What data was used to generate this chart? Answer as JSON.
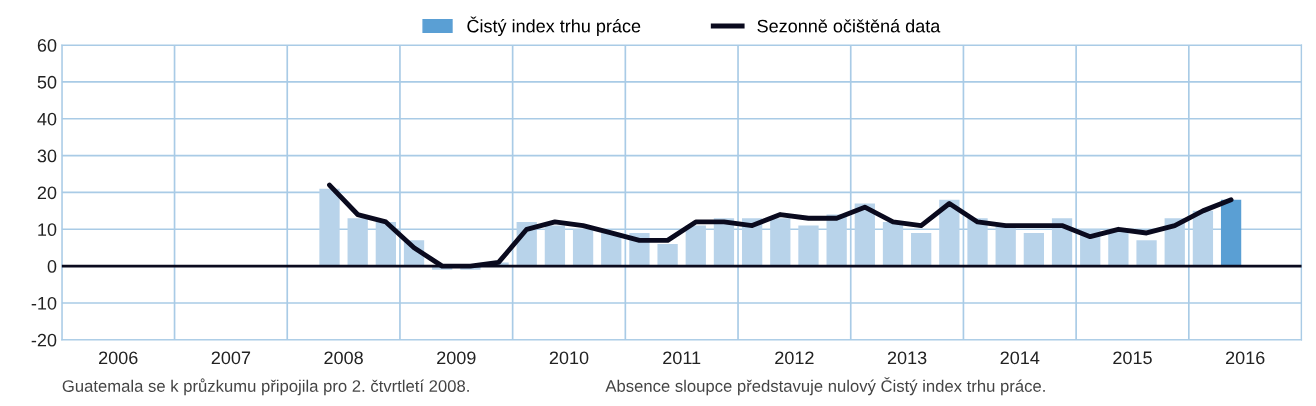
{
  "chart_data": {
    "type": "bar",
    "x": [
      2008.375,
      2008.625,
      2008.875,
      2009.125,
      2009.375,
      2009.625,
      2009.875,
      2010.125,
      2010.375,
      2010.625,
      2010.875,
      2011.125,
      2011.375,
      2011.625,
      2011.875,
      2012.125,
      2012.375,
      2012.625,
      2012.875,
      2013.125,
      2013.375,
      2013.625,
      2013.875,
      2014.125,
      2014.375,
      2014.625,
      2014.875,
      2015.125,
      2015.375,
      2015.625,
      2015.875,
      2016.125,
      2016.375
    ],
    "series": [
      {
        "name": "Čistý index trhu práce",
        "color": "#5a9fd4",
        "colors": [
          "#b8d3ea",
          "#b8d3ea",
          "#b8d3ea",
          "#b8d3ea",
          "#b8d3ea",
          "#b8d3ea",
          "#b8d3ea",
          "#b8d3ea",
          "#b8d3ea",
          "#b8d3ea",
          "#b8d3ea",
          "#b8d3ea",
          "#b8d3ea",
          "#b8d3ea",
          "#b8d3ea",
          "#b8d3ea",
          "#b8d3ea",
          "#b8d3ea",
          "#b8d3ea",
          "#b8d3ea",
          "#b8d3ea",
          "#b8d3ea",
          "#b8d3ea",
          "#b8d3ea",
          "#b8d3ea",
          "#b8d3ea",
          "#b8d3ea",
          "#b8d3ea",
          "#b8d3ea",
          "#b8d3ea",
          "#b8d3ea",
          "#b8d3ea",
          "#5a9fd4"
        ],
        "values": [
          21,
          13,
          12,
          7,
          -1,
          -1,
          1,
          12,
          11,
          10,
          9,
          9,
          6,
          11,
          13,
          13,
          13,
          11,
          14,
          17,
          12,
          9,
          18,
          13,
          11,
          9,
          13,
          10,
          10,
          7,
          13,
          15,
          18
        ]
      },
      {
        "name": "Sezonně očištěná data",
        "type": "line",
        "color": "#0a0a1e",
        "values": [
          22,
          14,
          12,
          5,
          0,
          0,
          1,
          10,
          12,
          11,
          9,
          7,
          7,
          12,
          12,
          11,
          14,
          13,
          13,
          16,
          12,
          11,
          17,
          12,
          11,
          11,
          11,
          8,
          10,
          9,
          11,
          15,
          18
        ]
      }
    ],
    "xlim": [
      2006,
      2017
    ],
    "xticks": [
      {
        "value": 2006,
        "label": null
      },
      {
        "value": 2007,
        "label": null
      },
      {
        "value": 2008,
        "label": null
      },
      {
        "value": 2009,
        "label": null
      },
      {
        "value": 2010,
        "label": null
      },
      {
        "value": 2011,
        "label": null
      },
      {
        "value": 2012,
        "label": null
      },
      {
        "value": 2013,
        "label": null
      },
      {
        "value": 2014,
        "label": null
      },
      {
        "value": 2015,
        "label": null
      },
      {
        "value": 2016,
        "label": null
      },
      {
        "value": 2017,
        "label": null
      },
      {
        "value": 2006.5,
        "label": "2006"
      },
      {
        "value": 2007.5,
        "label": "2007"
      },
      {
        "value": 2008.5,
        "label": "2008"
      },
      {
        "value": 2009.5,
        "label": "2009"
      },
      {
        "value": 2010.5,
        "label": "2010"
      },
      {
        "value": 2011.5,
        "label": "2011"
      },
      {
        "value": 2012.5,
        "label": "2012"
      },
      {
        "value": 2013.5,
        "label": "2013"
      },
      {
        "value": 2014.5,
        "label": "2014"
      },
      {
        "value": 2015.5,
        "label": "2015"
      },
      {
        "value": 2016.5,
        "label": "2016"
      }
    ],
    "ylim": [
      -20,
      60
    ],
    "yticks": [
      -20,
      -10,
      0,
      10,
      20,
      30,
      40,
      50,
      60
    ],
    "grid": true,
    "legend": "top",
    "ref_lines": [
      {
        "axis": "y",
        "value": 0,
        "color": "#0a0a1e"
      }
    ],
    "annotations": [
      "Guatemala se k průzkumu připojila pro 2. čtvrtletí 2008.",
      "Absence sloupce představuje nulový Čistý index trhu práce."
    ]
  }
}
